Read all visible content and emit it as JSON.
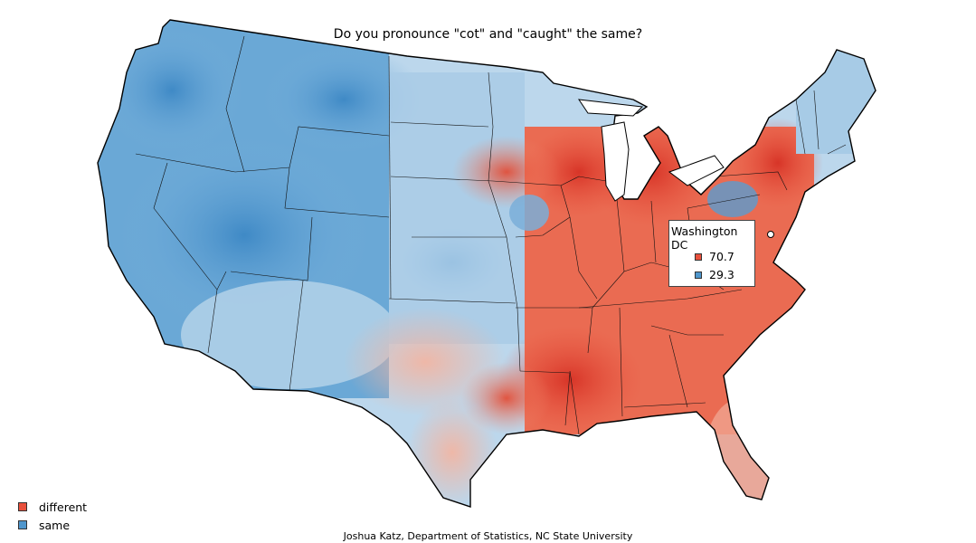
{
  "title": "Do you pronounce \"cot\" and \"caught\" the same?",
  "credit": "Joshua Katz, Department of Statistics, NC State University",
  "colors": {
    "different": "#e8503c",
    "same": "#4f96cc"
  },
  "legend": {
    "items": [
      {
        "label": "different",
        "color": "#e8503c"
      },
      {
        "label": "same",
        "color": "#4f96cc"
      }
    ]
  },
  "tooltip": {
    "location": "Washington DC",
    "different_pct": "70.7",
    "same_pct": "29.3"
  }
}
